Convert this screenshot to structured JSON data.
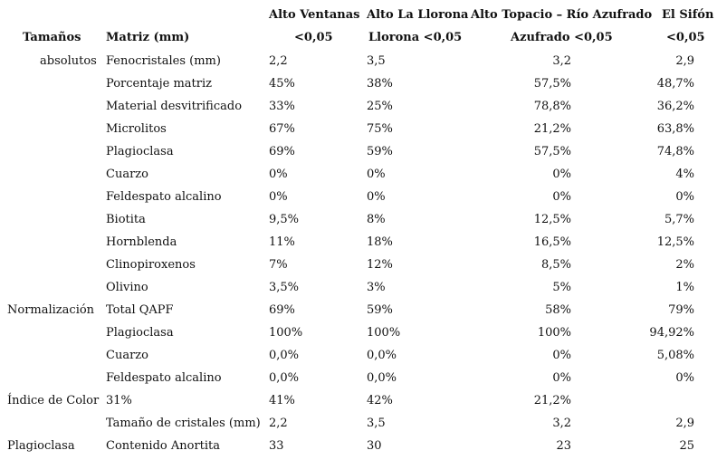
{
  "header": {
    "col1": "Alto Ventanas",
    "col2": "Alto La Llorona",
    "col3": "Alto Topacio – Río Azufrado",
    "col4": "El Sifón",
    "row2_label_a": "Tamaños",
    "row2_label_b": "Matriz (mm)",
    "row2_col1": "<0,05",
    "row2_col2": "Llorona <0,05",
    "row2_col3": "Azufrado <0,05",
    "row2_col4": "<0,05"
  },
  "rows": [
    {
      "a": "absolutos",
      "b": "Fenocristales (mm)",
      "c1": "2,2",
      "c2": "3,5",
      "c3": "3,2",
      "c4": "2,9"
    },
    {
      "a": "",
      "b": "Porcentaje matriz",
      "c1": "45%",
      "c2": "38%",
      "c3": "57,5%",
      "c4": "48,7%"
    },
    {
      "a": "",
      "b": "Material desvitrificado",
      "c1": "33%",
      "c2": "25%",
      "c3": "78,8%",
      "c4": "36,2%"
    },
    {
      "a": "",
      "b": "Microlitos",
      "c1": "67%",
      "c2": "75%",
      "c3": "21,2%",
      "c4": "63,8%"
    },
    {
      "a": "",
      "b": "Plagioclasa",
      "c1": "69%",
      "c2": "59%",
      "c3": "57,5%",
      "c4": "74,8%"
    },
    {
      "a": "",
      "b": "Cuarzo",
      "c1": "0%",
      "c2": "0%",
      "c3": "0%",
      "c4": "4%"
    },
    {
      "a": "",
      "b": "Feldespato alcalino",
      "c1": "0%",
      "c2": "0%",
      "c3": "0%",
      "c4": "0%"
    },
    {
      "a": "",
      "b": "Biotita",
      "c1": "9,5%",
      "c2": "8%",
      "c3": "12,5%",
      "c4": "5,7%"
    },
    {
      "a": "",
      "b": "Hornblenda",
      "c1": "11%",
      "c2": "18%",
      "c3": "16,5%",
      "c4": "12,5%"
    },
    {
      "a": "",
      "b": "Clinopiroxenos",
      "c1": "7%",
      "c2": "12%",
      "c3": "8,5%",
      "c4": "2%"
    },
    {
      "a": "",
      "b": "Olivino",
      "c1": "3,5%",
      "c2": "3%",
      "c3": "5%",
      "c4": "1%"
    },
    {
      "a": "Normalización",
      "b": "Total QAPF",
      "c1": "69%",
      "c2": "59%",
      "c3": "58%",
      "c4": "79%"
    },
    {
      "a": "",
      "b": "Plagioclasa",
      "c1": "100%",
      "c2": "100%",
      "c3": "100%",
      "c4": "94,92%"
    },
    {
      "a": "",
      "b": "Cuarzo",
      "c1": "0,0%",
      "c2": "0,0%",
      "c3": "0%",
      "c4": "5,08%"
    },
    {
      "a": "",
      "b": "Feldespato alcalino",
      "c1": "0,0%",
      "c2": "0,0%",
      "c3": "0%",
      "c4": "0%"
    },
    {
      "a": "Índice de Color",
      "b": "31%",
      "c1": "41%",
      "c2": "42%",
      "c3": "21,2%",
      "c4": ""
    },
    {
      "a": "",
      "b": "Tamaño de cristales (mm)",
      "c1": "2,2",
      "c2": "3,5",
      "c3": "3,2",
      "c4": "2,9"
    },
    {
      "a": "Plagioclasa",
      "b": "Contenido Anortita",
      "c1": "33",
      "c2": "30",
      "c3": "23",
      "c4": "25"
    }
  ]
}
